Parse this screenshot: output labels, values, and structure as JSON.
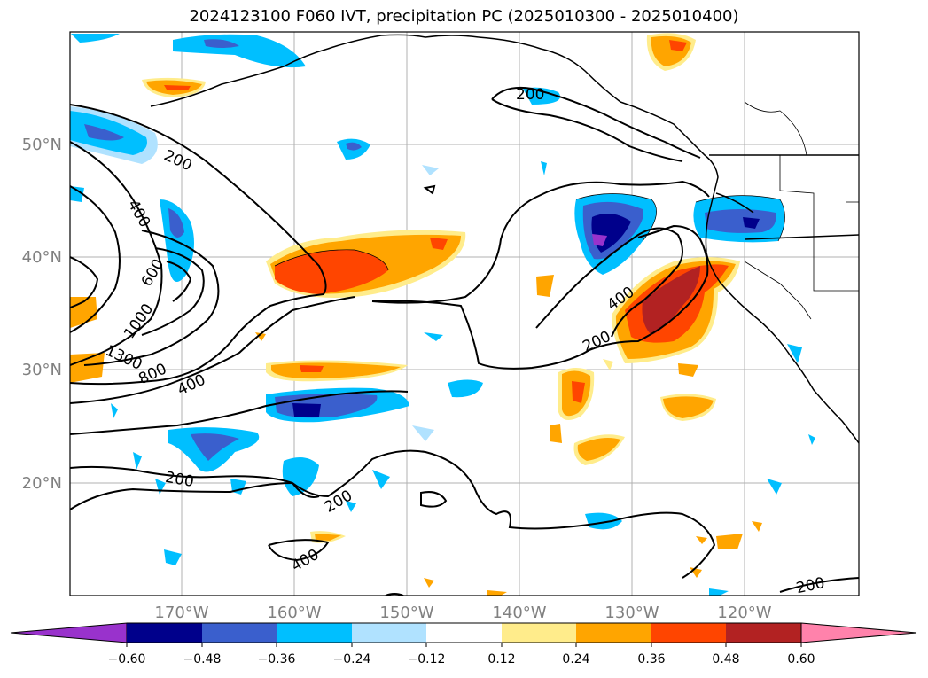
{
  "title": "2024123100 F060 IVT, precipitation PC (2025010300 - 2025010400)",
  "map": {
    "lat_labels": [
      "50°N",
      "40°N",
      "30°N",
      "20°N"
    ],
    "lon_labels": [
      "170°W",
      "160°W",
      "150°W",
      "140°W",
      "130°W",
      "120°W"
    ],
    "contour_labels": [
      "200",
      "400",
      "600",
      "1000",
      "1300",
      "800",
      "400",
      "200",
      "200",
      "400",
      "200",
      "400",
      "200",
      "200"
    ]
  },
  "colorbar": {
    "ticks": [
      "−0.60",
      "−0.48",
      "−0.36",
      "−0.24",
      "−0.12",
      "0.12",
      "0.24",
      "0.36",
      "0.48",
      "0.60"
    ],
    "colors": [
      "#9932CC",
      "#00008B",
      "#3A5FCD",
      "#00BFFF",
      "#B0E2FF",
      "#FFFFFF",
      "#FFEC8B",
      "#FFA500",
      "#FF4500",
      "#B22222",
      "#FF82AB"
    ]
  }
}
